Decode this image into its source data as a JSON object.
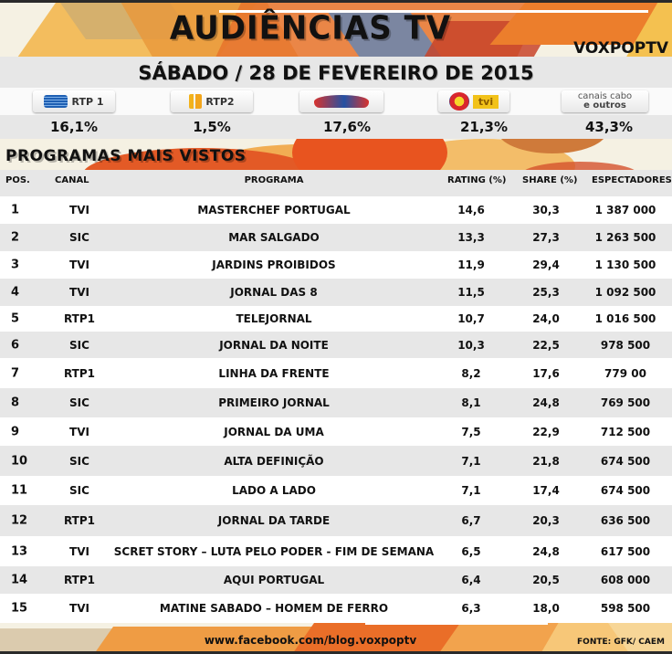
{
  "header": {
    "title": "AUDIÊNCIAS TV",
    "brand": "VOXPOPTV",
    "date": "SÁBADO / 28 DE FEVEREIRO DE 2015"
  },
  "channels": [
    {
      "name": "RTP 1",
      "logo_icon": "rtp1-logo",
      "share": "16,1%"
    },
    {
      "name": "RTP2",
      "logo_icon": "rtp2-logo",
      "share": "1,5%"
    },
    {
      "name": "SIC",
      "logo_icon": "sic-logo",
      "share": "17,6%"
    },
    {
      "name": "tvi",
      "logo_icon": "tvi-logo",
      "share": "21,3%"
    },
    {
      "name_line1": "canais cabo",
      "name_line2": "e outros",
      "logo_icon": "cabo-logo",
      "share": "43,3%"
    }
  ],
  "programs": {
    "title": "PROGRAMAS MAIS VISTOS",
    "columns": {
      "pos": "POS.",
      "canal": "CANAL",
      "programa": "PROGRAMA",
      "rating": "RATING (%)",
      "share": "SHARE (%)",
      "espectadores": "ESPECTADORES"
    },
    "rows": [
      {
        "pos": "1",
        "canal": "TVI",
        "programa": "MASTERCHEF PORTUGAL",
        "rating": "14,6",
        "share": "30,3",
        "espectadores": "1 387 000"
      },
      {
        "pos": "2",
        "canal": "SIC",
        "programa": "MAR SALGADO",
        "rating": "13,3",
        "share": "27,3",
        "espectadores": "1 263 500"
      },
      {
        "pos": "3",
        "canal": "TVI",
        "programa": "JARDINS PROIBIDOS",
        "rating": "11,9",
        "share": "29,4",
        "espectadores": "1 130 500"
      },
      {
        "pos": "4",
        "canal": "TVI",
        "programa": "JORNAL DAS 8",
        "rating": "11,5",
        "share": "25,3",
        "espectadores": "1 092 500"
      },
      {
        "pos": "5",
        "canal": "RTP1",
        "programa": "TELEJORNAL",
        "rating": "10,7",
        "share": "24,0",
        "espectadores": "1 016 500"
      },
      {
        "pos": "6",
        "canal": "SIC",
        "programa": "JORNAL DA NOITE",
        "rating": "10,3",
        "share": "22,5",
        "espectadores": "978 500"
      },
      {
        "pos": "7",
        "canal": "RTP1",
        "programa": "LINHA DA FRENTE",
        "rating": "8,2",
        "share": "17,6",
        "espectadores": "779 00"
      },
      {
        "pos": "8",
        "canal": "SIC",
        "programa": "PRIMEIRO JORNAL",
        "rating": "8,1",
        "share": "24,8",
        "espectadores": "769 500"
      },
      {
        "pos": "9",
        "canal": "TVI",
        "programa": "JORNAL DA UMA",
        "rating": "7,5",
        "share": "22,9",
        "espectadores": "712 500"
      },
      {
        "pos": "10",
        "canal": "SIC",
        "programa": "ALTA DEFINIÇÃO",
        "rating": "7,1",
        "share": "21,8",
        "espectadores": "674 500"
      },
      {
        "pos": "11",
        "canal": "SIC",
        "programa": "LADO A LADO",
        "rating": "7,1",
        "share": "17,4",
        "espectadores": "674 500"
      },
      {
        "pos": "12",
        "canal": "RTP1",
        "programa": "JORNAL DA TARDE",
        "rating": "6,7",
        "share": "20,3",
        "espectadores": "636 500"
      },
      {
        "pos": "13",
        "canal": "TVI",
        "programa": "SCRET STORY – LUTA PELO PODER - FIM DE SEMANA",
        "rating": "6,5",
        "share": "24,8",
        "espectadores": "617 500"
      },
      {
        "pos": "14",
        "canal": "RTP1",
        "programa": "AQUI PORTUGAL",
        "rating": "6,4",
        "share": "20,5",
        "espectadores": "608 000"
      },
      {
        "pos": "15",
        "canal": "TVI",
        "programa": "MATINE SABADO – HOMEM DE FERRO",
        "rating": "6,3",
        "share": "18,0",
        "espectadores": "598 500"
      }
    ]
  },
  "footer": {
    "link": "www.facebook.com/blog.voxpoptv",
    "source": "FONTE: GFK/ CAEM"
  },
  "colors": {
    "accent_orange": "#e7732b",
    "row_alt": "#e7e7e7",
    "row": "#ffffff",
    "background": "#f5f1e3"
  }
}
